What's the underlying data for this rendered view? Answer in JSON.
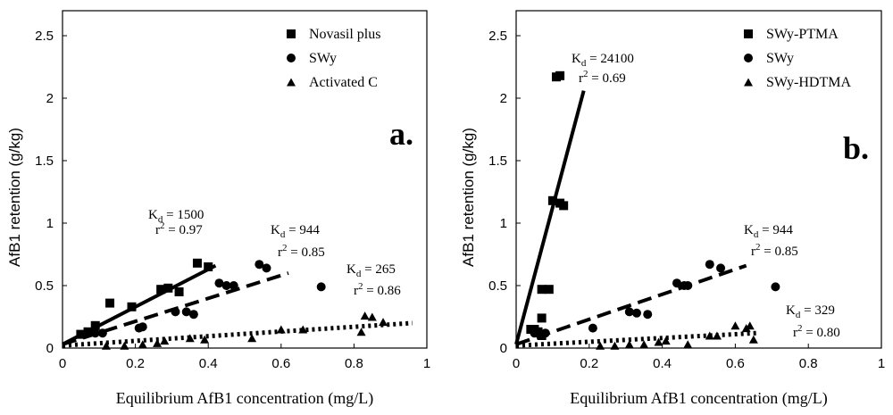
{
  "chart_data": [
    {
      "type": "scatter",
      "panel_label": "a.",
      "xlabel": "Equilibrium AfB1 concentration (mg/L)",
      "ylabel": "AfB1 retention (g/kg)",
      "xlim": [
        0,
        1
      ],
      "ylim": [
        0,
        2.7
      ],
      "xticks": [
        "0",
        "0.2",
        "0.4",
        "0.6",
        "0.8",
        "1"
      ],
      "yticks": [
        "0",
        "0.5",
        "1",
        "1.5",
        "2",
        "2.5"
      ],
      "legend_position": "top-right",
      "series": [
        {
          "name": "Novasil plus",
          "marker": "square",
          "line_style": "solid",
          "line_x": [
            0,
            0.42
          ],
          "line_y": [
            0.03,
            0.66
          ],
          "points": [
            [
              0.05,
              0.11
            ],
            [
              0.07,
              0.13
            ],
            [
              0.09,
              0.18
            ],
            [
              0.13,
              0.36
            ],
            [
              0.19,
              0.33
            ],
            [
              0.27,
              0.47
            ],
            [
              0.29,
              0.48
            ],
            [
              0.32,
              0.45
            ],
            [
              0.37,
              0.68
            ],
            [
              0.4,
              0.65
            ]
          ]
        },
        {
          "name": "SWy",
          "marker": "circle",
          "line_style": "dashed",
          "line_x": [
            0,
            0.62
          ],
          "line_y": [
            0.03,
            0.6
          ],
          "points": [
            [
              0.09,
              0.12
            ],
            [
              0.11,
              0.12
            ],
            [
              0.21,
              0.16
            ],
            [
              0.22,
              0.17
            ],
            [
              0.31,
              0.29
            ],
            [
              0.34,
              0.29
            ],
            [
              0.36,
              0.27
            ],
            [
              0.43,
              0.52
            ],
            [
              0.45,
              0.5
            ],
            [
              0.47,
              0.5
            ],
            [
              0.54,
              0.67
            ],
            [
              0.56,
              0.64
            ],
            [
              0.71,
              0.49
            ]
          ]
        },
        {
          "name": "Activated C",
          "marker": "triangle",
          "line_style": "dotted",
          "line_x": [
            0,
            0.96
          ],
          "line_y": [
            0.02,
            0.2
          ],
          "points": [
            [
              0.12,
              0.02
            ],
            [
              0.17,
              0.02
            ],
            [
              0.22,
              0.03
            ],
            [
              0.26,
              0.04
            ],
            [
              0.28,
              0.06
            ],
            [
              0.35,
              0.08
            ],
            [
              0.39,
              0.07
            ],
            [
              0.52,
              0.08
            ],
            [
              0.6,
              0.15
            ],
            [
              0.66,
              0.15
            ],
            [
              0.82,
              0.13
            ],
            [
              0.83,
              0.26
            ],
            [
              0.85,
              0.25
            ],
            [
              0.88,
              0.21
            ]
          ]
        }
      ],
      "annotations": [
        {
          "kd": "1500",
          "r2": "0.97"
        },
        {
          "kd": "944",
          "r2": "0.85"
        },
        {
          "kd": "265",
          "r2": "0.86"
        }
      ]
    },
    {
      "type": "scatter",
      "panel_label": "b.",
      "xlabel": "Equilibrium AfB1 concentration (mg/L)",
      "ylabel": "AfB1 retention (g/kg)",
      "xlim": [
        0,
        1
      ],
      "ylim": [
        0,
        2.7
      ],
      "xticks": [
        "0",
        "0.2",
        "0.4",
        "0.6",
        "0.8",
        "1"
      ],
      "yticks": [
        "0",
        "0.5",
        "1",
        "1.5",
        "2",
        "2.5"
      ],
      "legend_position": "top-right",
      "series": [
        {
          "name": "SWy-PTMA",
          "marker": "square",
          "line_style": "solid",
          "line_x": [
            0,
            0.185
          ],
          "line_y": [
            0.03,
            2.06
          ],
          "points": [
            [
              0.04,
              0.15
            ],
            [
              0.05,
              0.15
            ],
            [
              0.06,
              0.13
            ],
            [
              0.07,
              0.47
            ],
            [
              0.07,
              0.24
            ],
            [
              0.09,
              0.47
            ],
            [
              0.1,
              1.18
            ],
            [
              0.12,
              1.16
            ],
            [
              0.13,
              1.14
            ],
            [
              0.12,
              2.18
            ],
            [
              0.11,
              2.17
            ],
            [
              0.07,
              0.1
            ]
          ]
        },
        {
          "name": "SWy",
          "marker": "circle",
          "line_style": "dashed",
          "line_x": [
            0,
            0.63
          ],
          "line_y": [
            0.03,
            0.66
          ],
          "points": [
            [
              0.05,
              0.12
            ],
            [
              0.06,
              0.12
            ],
            [
              0.08,
              0.12
            ],
            [
              0.21,
              0.16
            ],
            [
              0.31,
              0.29
            ],
            [
              0.33,
              0.28
            ],
            [
              0.36,
              0.27
            ],
            [
              0.44,
              0.52
            ],
            [
              0.46,
              0.5
            ],
            [
              0.47,
              0.5
            ],
            [
              0.53,
              0.67
            ],
            [
              0.56,
              0.64
            ],
            [
              0.71,
              0.49
            ]
          ]
        },
        {
          "name": "SWy-HDTMA",
          "marker": "triangle",
          "line_style": "dotted",
          "line_x": [
            0,
            0.66
          ],
          "line_y": [
            0.02,
            0.12
          ],
          "points": [
            [
              0.23,
              0.02
            ],
            [
              0.27,
              0.02
            ],
            [
              0.31,
              0.03
            ],
            [
              0.35,
              0.03
            ],
            [
              0.39,
              0.05
            ],
            [
              0.41,
              0.06
            ],
            [
              0.47,
              0.03
            ],
            [
              0.53,
              0.1
            ],
            [
              0.55,
              0.1
            ],
            [
              0.6,
              0.18
            ],
            [
              0.63,
              0.16
            ],
            [
              0.64,
              0.18
            ],
            [
              0.65,
              0.07
            ]
          ]
        }
      ],
      "annotations": [
        {
          "kd": "24100",
          "r2": "0.69"
        },
        {
          "kd": "944",
          "r2": "0.85"
        },
        {
          "kd": "329",
          "r2": "0.80"
        }
      ]
    }
  ],
  "labels": {
    "kd_symbol": "K",
    "kd_sub": "d",
    "r2_prefix": "r",
    "r2_sup": "2"
  }
}
